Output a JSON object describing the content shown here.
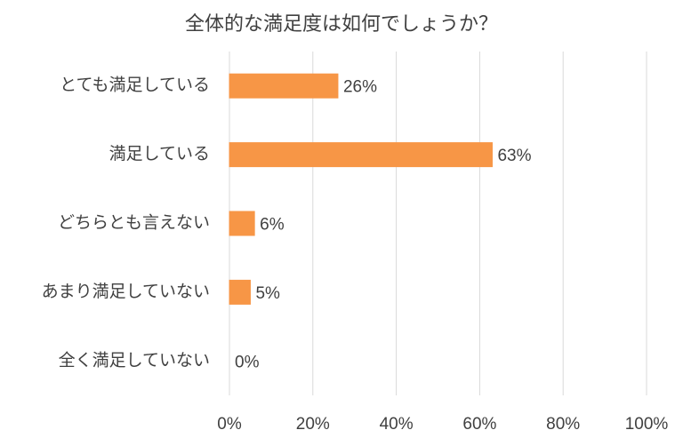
{
  "chart_data": {
    "type": "bar",
    "orientation": "horizontal",
    "title": "全体的な満足度は如何でしょうか？",
    "categories": [
      "とても満足している",
      "満足している",
      "どちらとも言えない",
      "あまり満足していない",
      "全く満足していない"
    ],
    "values": [
      26,
      63,
      6,
      5,
      0
    ],
    "value_labels": [
      "26%",
      "63%",
      "6%",
      "5%",
      "0%"
    ],
    "color": "#f79646",
    "xlim": [
      0,
      100
    ],
    "xticks": [
      {
        "value": 0,
        "label": "0%"
      },
      {
        "value": 20,
        "label": "20%"
      },
      {
        "value": 40,
        "label": "40%"
      },
      {
        "value": 60,
        "label": "60%"
      },
      {
        "value": 80,
        "label": "80%"
      },
      {
        "value": 100,
        "label": "100%"
      }
    ],
    "grid": true
  }
}
